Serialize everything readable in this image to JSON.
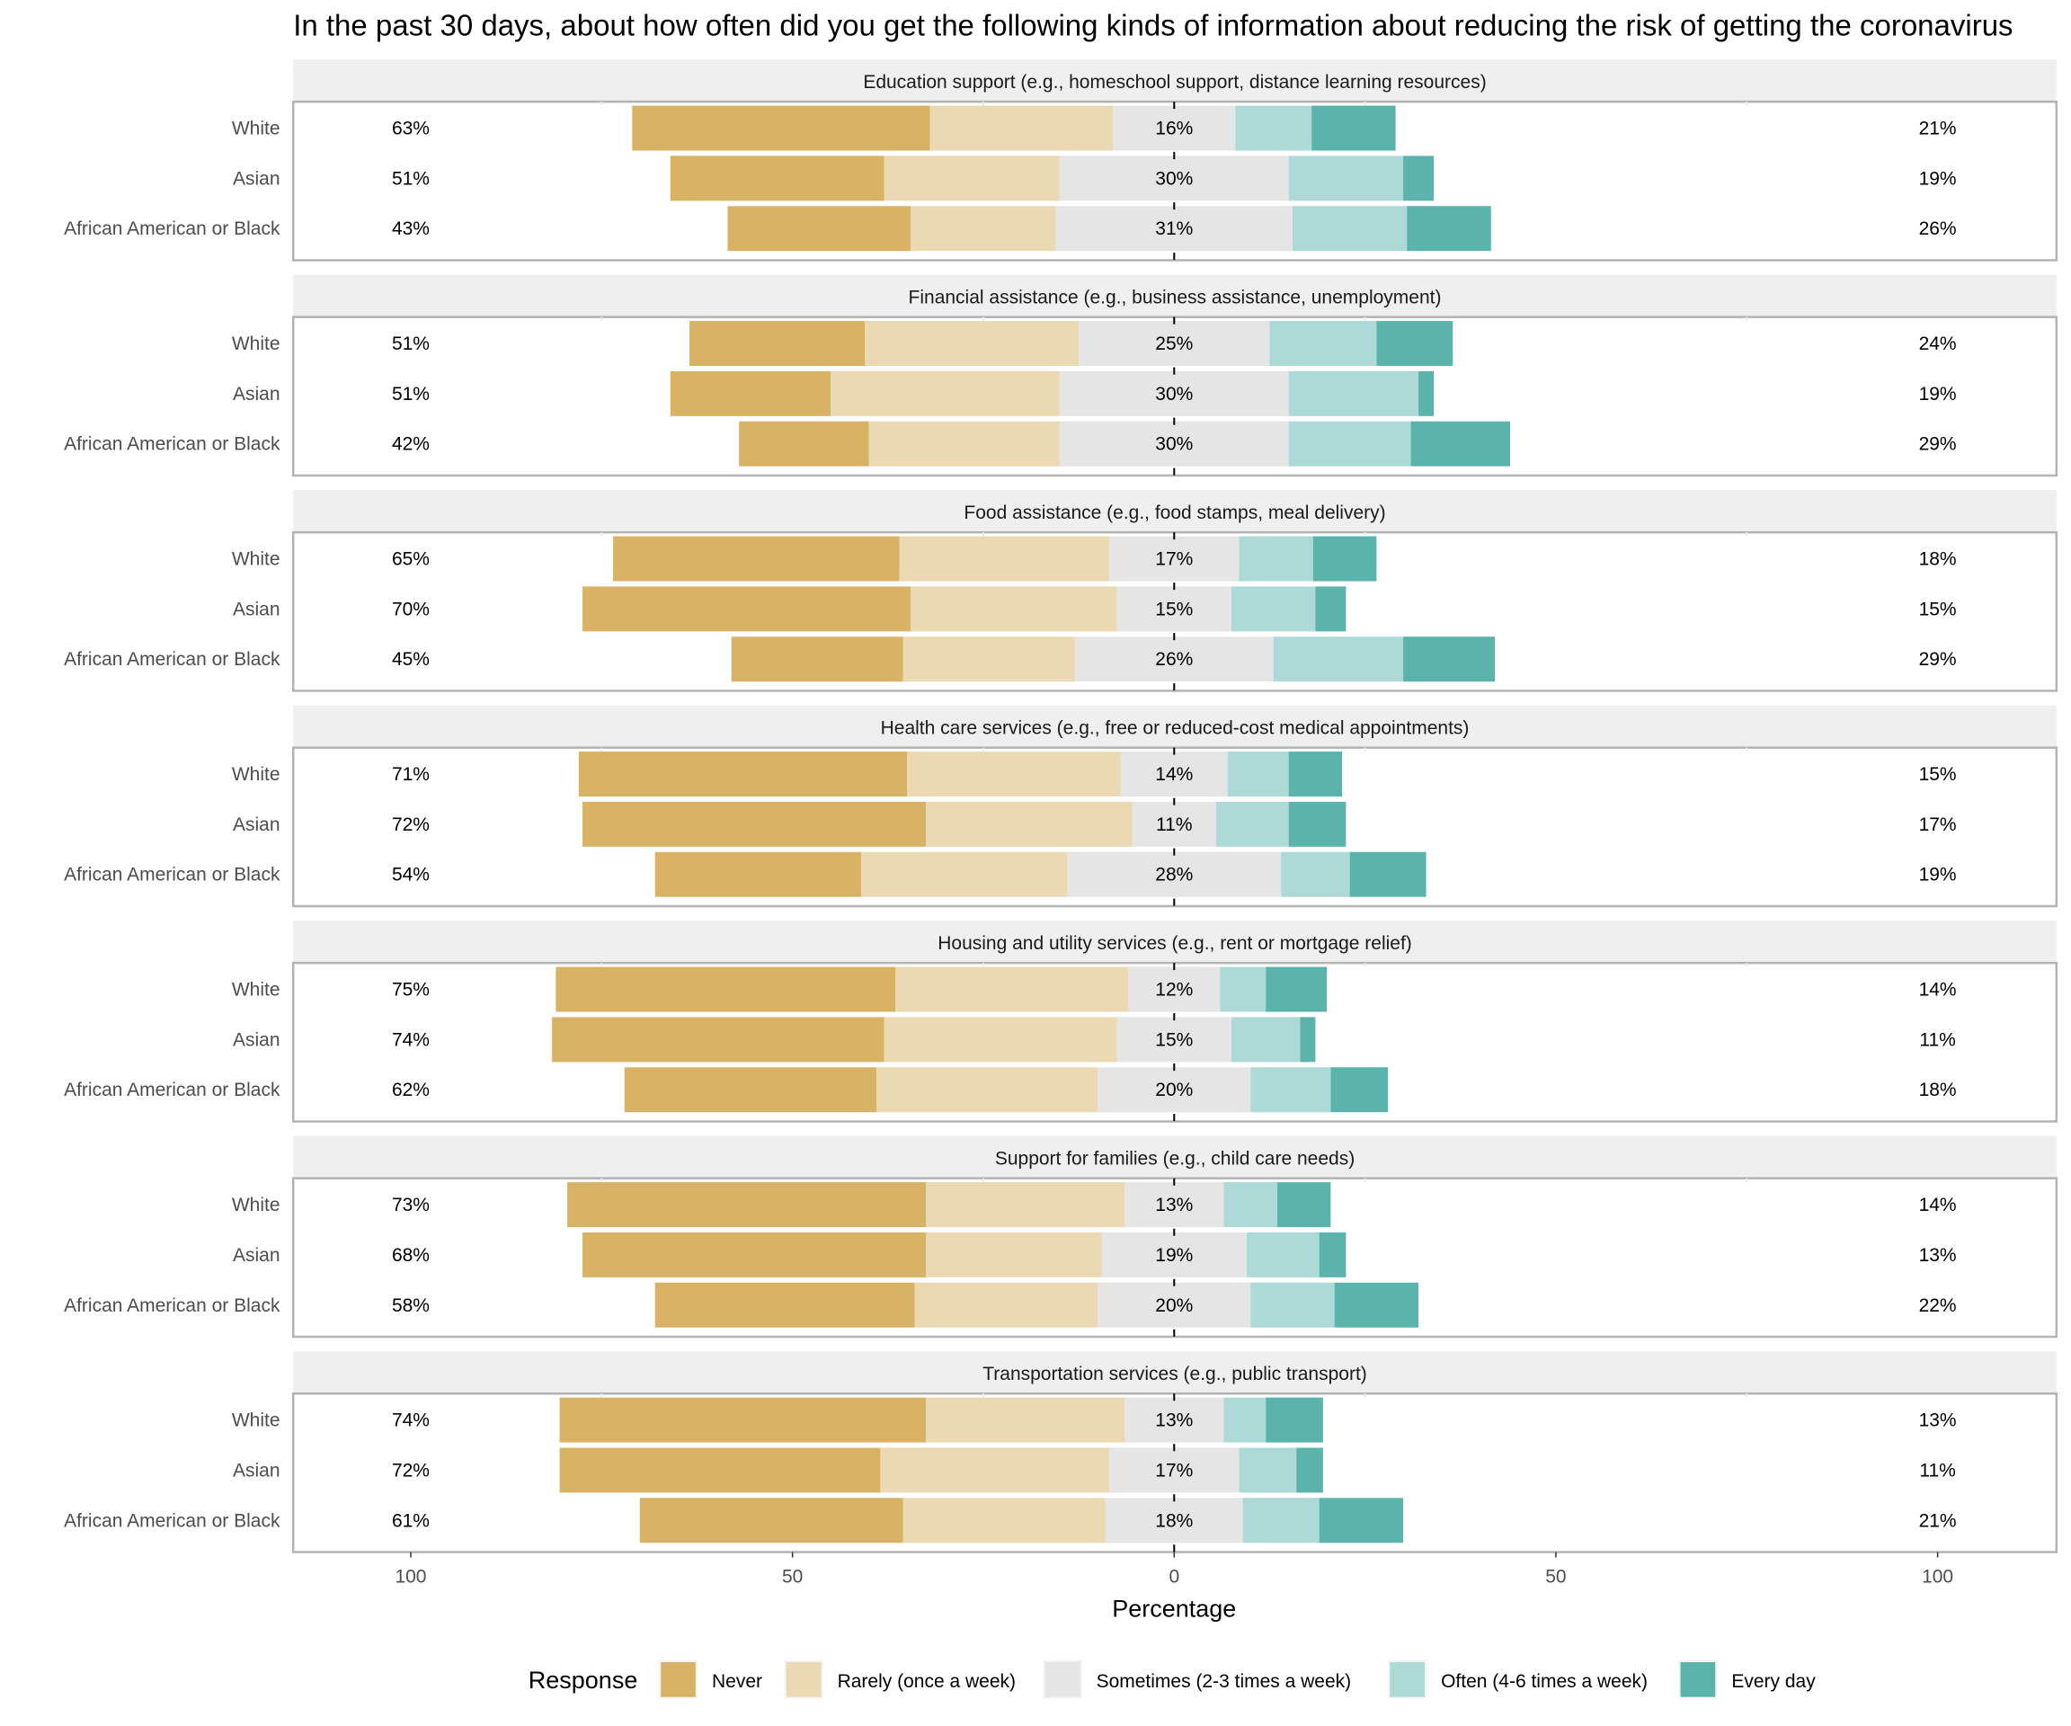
{
  "chart_data": {
    "type": "bar",
    "subtype": "diverging-stacked-horizontal-faceted",
    "title": "In the past 30 days, about how often did you get the following kinds of information about reducing the risk of getting the coronavirus",
    "xlabel": "Percentage",
    "ylabel": "",
    "xlim": [
      -100,
      100
    ],
    "x_ticks": [
      {
        "value": -100,
        "label": "100"
      },
      {
        "value": -50,
        "label": "50"
      },
      {
        "value": 0,
        "label": "0"
      },
      {
        "value": 50,
        "label": "50"
      },
      {
        "value": 100,
        "label": "100"
      }
    ],
    "grid": true,
    "legend": {
      "title": "Response",
      "position": "bottom",
      "entries": [
        {
          "label": "Never",
          "color": "#D8B365"
        },
        {
          "label": "Rarely (once a week)",
          "color": "#EAD9B2"
        },
        {
          "label": "Sometimes (2-3 times a week)",
          "color": "#E5E5E5"
        },
        {
          "label": "Often (4-6 times a week)",
          "color": "#ADD9D6"
        },
        {
          "label": "Every day",
          "color": "#5AB4AC"
        }
      ]
    },
    "categories": [
      "White",
      "Asian",
      "African American or Black"
    ],
    "series_order": [
      "Never",
      "Rarely (once a week)",
      "Sometimes (2-3 times a week)",
      "Often (4-6 times a week)",
      "Every day"
    ],
    "facets": [
      {
        "label": "Education support (e.g., homeschool support, distance learning resources)",
        "rows": [
          {
            "group": "White",
            "values": [
              39,
              24,
              16,
              10,
              11
            ],
            "left_label": "63%",
            "center_label": "16%",
            "right_label": "21%"
          },
          {
            "group": "Asian",
            "values": [
              28,
              23,
              30,
              15,
              4
            ],
            "left_label": "51%",
            "center_label": "30%",
            "right_label": "19%"
          },
          {
            "group": "African American or Black",
            "values": [
              24,
              19,
              31,
              15,
              11
            ],
            "left_label": "43%",
            "center_label": "31%",
            "right_label": "26%"
          }
        ]
      },
      {
        "label": "Financial assistance (e.g., business assistance, unemployment)",
        "rows": [
          {
            "group": "White",
            "values": [
              23,
              28,
              25,
              14,
              10
            ],
            "left_label": "51%",
            "center_label": "25%",
            "right_label": "24%"
          },
          {
            "group": "Asian",
            "values": [
              21,
              30,
              30,
              17,
              2
            ],
            "left_label": "51%",
            "center_label": "30%",
            "right_label": "19%"
          },
          {
            "group": "African American or Black",
            "values": [
              17,
              25,
              30,
              16,
              13
            ],
            "left_label": "42%",
            "center_label": "30%",
            "right_label": "29%"
          }
        ]
      },
      {
        "label": "Food assistance (e.g., food stamps, meal delivery)",
        "rows": [
          {
            "group": "White",
            "values": [
              37.5,
              27.5,
              17,
              9.7,
              8.3
            ],
            "left_label": "65%",
            "center_label": "17%",
            "right_label": "18%"
          },
          {
            "group": "Asian",
            "values": [
              43,
              27,
              15,
              11,
              4
            ],
            "left_label": "70%",
            "center_label": "15%",
            "right_label": "15%"
          },
          {
            "group": "African American or Black",
            "values": [
              22.5,
              22.5,
              26,
              17,
              12
            ],
            "left_label": "45%",
            "center_label": "26%",
            "right_label": "29%"
          }
        ]
      },
      {
        "label": "Health care services (e.g., free or reduced-cost medical appointments)",
        "rows": [
          {
            "group": "White",
            "values": [
              43,
              28,
              14,
              8,
              7
            ],
            "left_label": "71%",
            "center_label": "14%",
            "right_label": "15%"
          },
          {
            "group": "Asian",
            "values": [
              45,
              27,
              11,
              9.5,
              7.5
            ],
            "left_label": "72%",
            "center_label": "11%",
            "right_label": "17%"
          },
          {
            "group": "African American or Black",
            "values": [
              27,
              27,
              28,
              9,
              10
            ],
            "left_label": "54%",
            "center_label": "28%",
            "right_label": "19%"
          }
        ]
      },
      {
        "label": "Housing and utility services (e.g., rent or mortgage relief)",
        "rows": [
          {
            "group": "White",
            "values": [
              44.5,
              30.5,
              12,
              6,
              8
            ],
            "left_label": "75%",
            "center_label": "12%",
            "right_label": "14%"
          },
          {
            "group": "Asian",
            "values": [
              43.5,
              30.5,
              15,
              9,
              2
            ],
            "left_label": "74%",
            "center_label": "15%",
            "right_label": "11%"
          },
          {
            "group": "African American or Black",
            "values": [
              33,
              29,
              20,
              10.5,
              7.5
            ],
            "left_label": "62%",
            "center_label": "20%",
            "right_label": "18%"
          }
        ]
      },
      {
        "label": "Support for families (e.g., child care needs)",
        "rows": [
          {
            "group": "White",
            "values": [
              47,
              26,
              13,
              7,
              7
            ],
            "left_label": "73%",
            "center_label": "13%",
            "right_label": "14%"
          },
          {
            "group": "Asian",
            "values": [
              45,
              23,
              19,
              9.5,
              3.5
            ],
            "left_label": "68%",
            "center_label": "19%",
            "right_label": "13%"
          },
          {
            "group": "African American or Black",
            "values": [
              34,
              24,
              20,
              11,
              11
            ],
            "left_label": "58%",
            "center_label": "20%",
            "right_label": "22%"
          }
        ]
      },
      {
        "label": "Transportation services (e.g., public transport)",
        "rows": [
          {
            "group": "White",
            "values": [
              48,
              26,
              13,
              5.5,
              7.5
            ],
            "left_label": "74%",
            "center_label": "13%",
            "right_label": "13%"
          },
          {
            "group": "Asian",
            "values": [
              42,
              30,
              17,
              7.5,
              3.5
            ],
            "left_label": "72%",
            "center_label": "17%",
            "right_label": "11%"
          },
          {
            "group": "African American or Black",
            "values": [
              34.5,
              26.5,
              18,
              10,
              11
            ],
            "left_label": "61%",
            "center_label": "18%",
            "right_label": "21%"
          }
        ]
      }
    ]
  }
}
